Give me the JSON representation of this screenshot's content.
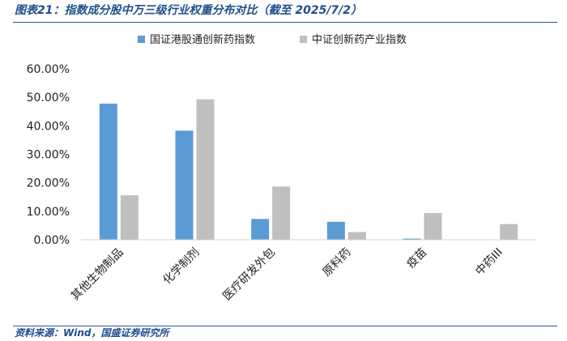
{
  "title": "图表21：指数成分股中万三级行业权重分布对比（截至 2025/7/2）",
  "source": "资料来源：Wind，国盛证券研究所",
  "chart_data": {
    "type": "bar",
    "categories": [
      "其他生物制品",
      "化学制剂",
      "医疗研发外包",
      "原料药",
      "疫苗",
      "中药III"
    ],
    "series": [
      {
        "name": "国证港股通创新药指数",
        "color": "#5b9bd5",
        "values": [
          47.8,
          38.3,
          7.3,
          6.3,
          0.4,
          0.0
        ]
      },
      {
        "name": "中证创新药产业指数",
        "color": "#bfbfbf",
        "values": [
          15.6,
          49.3,
          18.7,
          2.7,
          9.4,
          5.5
        ]
      }
    ],
    "y_ticks": [
      "0.00%",
      "10.00%",
      "20.00%",
      "30.00%",
      "40.00%",
      "50.00%",
      "60.00%"
    ],
    "ylim": [
      0,
      60
    ],
    "legend_position": "top",
    "grid": false
  }
}
